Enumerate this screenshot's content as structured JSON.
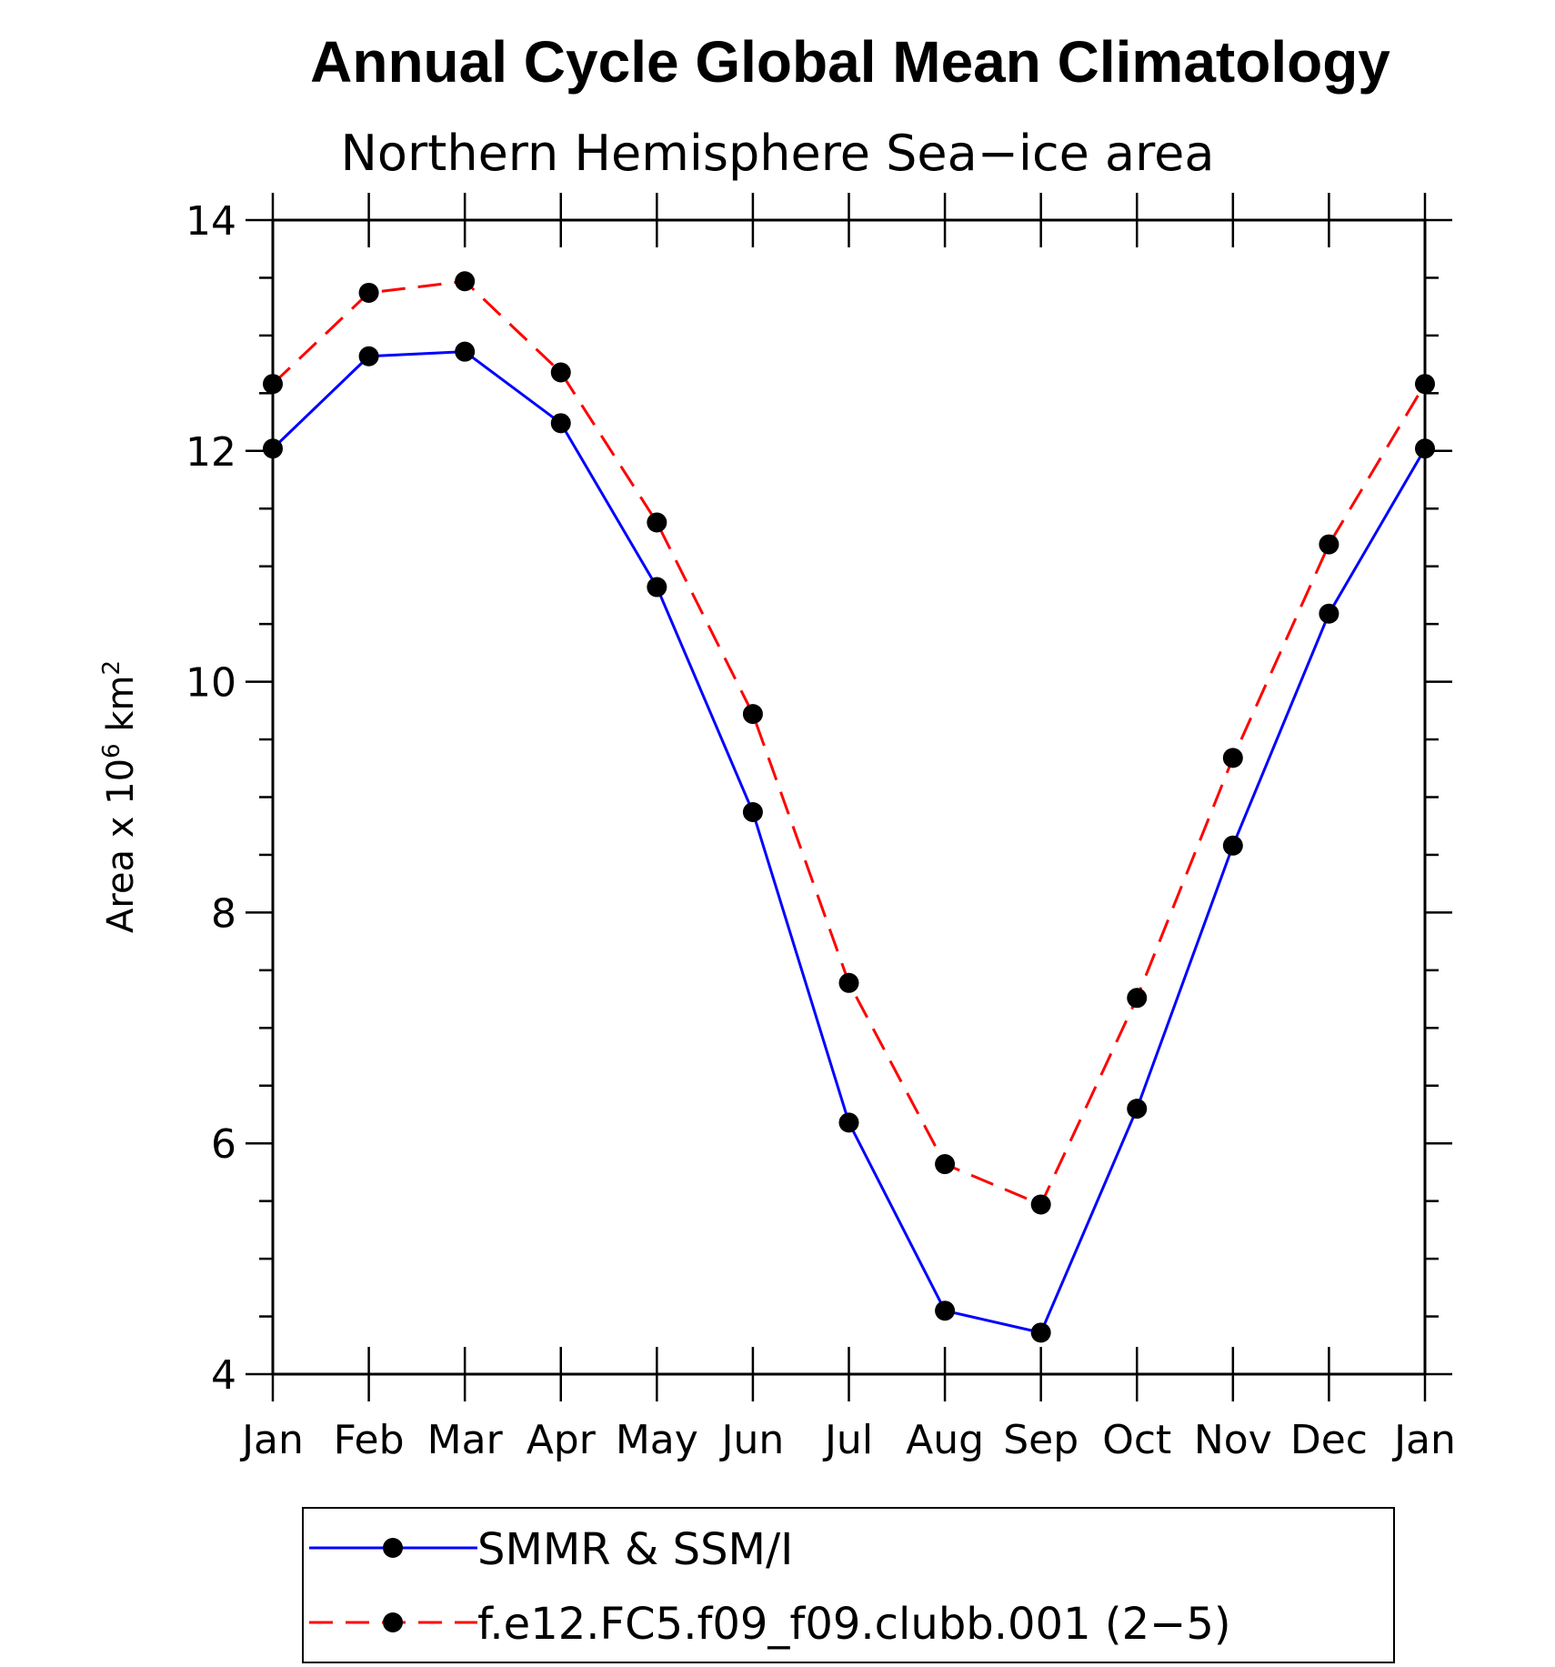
{
  "chart_data": {
    "type": "line",
    "title": "Annual Cycle Global Mean Climatology",
    "subtitle": "Northern Hemisphere Sea−ice area",
    "ylabel_prefix": "Area x 10",
    "ylabel_exp1": "6",
    "ylabel_unit": " km",
    "ylabel_exp2": "2",
    "ylim": [
      4,
      14
    ],
    "yticks": [
      4,
      6,
      8,
      10,
      12,
      14
    ],
    "categories": [
      "Jan",
      "Feb",
      "Mar",
      "Apr",
      "May",
      "Jun",
      "Jul",
      "Aug",
      "Sep",
      "Oct",
      "Nov",
      "Dec",
      "Jan"
    ],
    "series": [
      {
        "name": "SMMR & SSM/I",
        "color": "#0000ff",
        "dash": "solid",
        "values": [
          12.02,
          12.82,
          12.86,
          12.24,
          10.82,
          8.87,
          6.18,
          4.55,
          4.36,
          6.3,
          8.58,
          10.59,
          12.02
        ]
      },
      {
        "name": "f.e12.FC5.f09_f09.clubb.001 (2−5)",
        "color": "#ff0000",
        "dash": "dashed",
        "values": [
          12.58,
          13.37,
          13.47,
          12.68,
          11.38,
          9.72,
          7.39,
          5.82,
          5.47,
          7.26,
          9.34,
          11.19,
          12.58
        ]
      }
    ],
    "legend_position": "bottom"
  }
}
